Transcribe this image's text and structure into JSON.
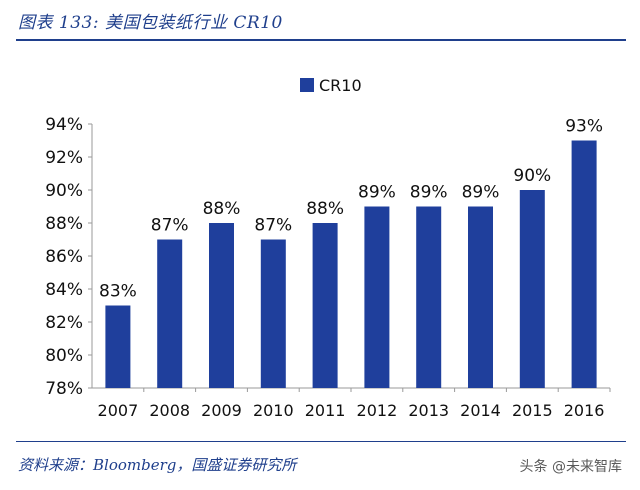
{
  "header": {
    "title": "图表 133:  美国包装纸行业 CR10"
  },
  "footer": {
    "source": "资料来源：Bloomberg，国盛证券研究所",
    "watermark": "头条 @未来智库"
  },
  "colors": {
    "bar": "#1f3f9c",
    "title": "#1f3f8c"
  },
  "chart_data": {
    "type": "bar",
    "categories": [
      "2007",
      "2008",
      "2009",
      "2010",
      "2011",
      "2012",
      "2013",
      "2014",
      "2015",
      "2016"
    ],
    "series": [
      {
        "name": "CR10",
        "values": [
          83,
          87,
          88,
          87,
          88,
          89,
          89,
          89,
          90,
          93
        ]
      }
    ],
    "data_labels": [
      "83%",
      "87%",
      "88%",
      "87%",
      "88%",
      "89%",
      "89%",
      "89%",
      "90%",
      "93%"
    ],
    "yticks": [
      "78%",
      "80%",
      "82%",
      "84%",
      "86%",
      "88%",
      "90%",
      "92%",
      "94%"
    ],
    "ylim": [
      78,
      94
    ],
    "legend": "top-center",
    "grid": false
  }
}
